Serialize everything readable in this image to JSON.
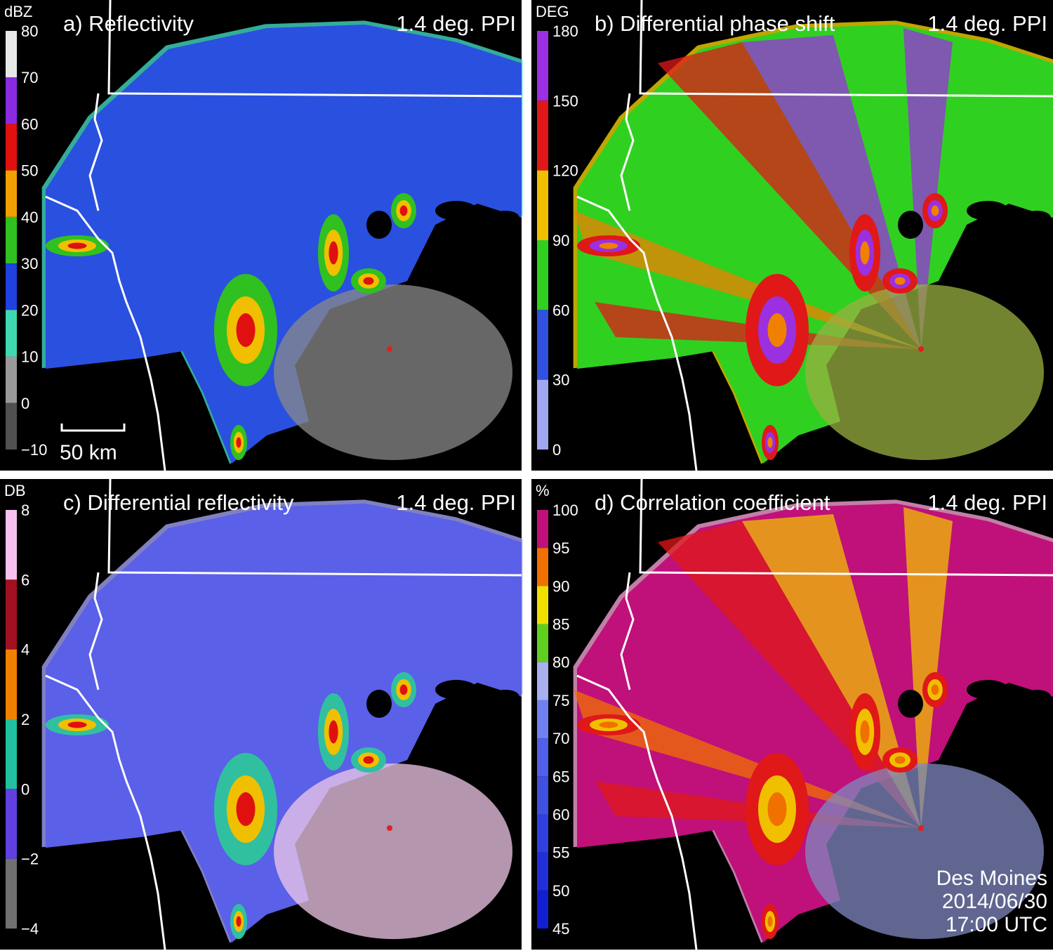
{
  "panels": [
    {
      "title": "a) Reflectivity",
      "scan": "1.4 deg. PPI",
      "unit": "dBZ",
      "ticks": [
        "80",
        "70",
        "60",
        "50",
        "40",
        "30",
        "20",
        "10",
        "0",
        "−10"
      ],
      "colors": [
        "#e8e8e8",
        "#8a2be2",
        "#e01010",
        "#f0a000",
        "#30c020",
        "#2040e0",
        "#40d8b0",
        "#9a9a9a",
        "#505050"
      ]
    },
    {
      "title": "b) Differential phase shift",
      "scan": "1.4 deg. PPI",
      "unit": "DEG",
      "ticks": [
        "180",
        "150",
        "120",
        "90",
        "60",
        "30",
        "0"
      ],
      "colors": [
        "#9a30e0",
        "#e01818",
        "#f0c000",
        "#30d020",
        "#3050e0",
        "#a0a8f0"
      ]
    },
    {
      "title": "c) Differential reflectivity",
      "scan": "1.4 deg. PPI",
      "unit": "DB",
      "ticks": [
        "8",
        "6",
        "4",
        "2",
        "0",
        "−2",
        "−4"
      ],
      "colors": [
        "#f8c0f0",
        "#a01020",
        "#f08000",
        "#20c0a0",
        "#6040e0",
        "#707070"
      ]
    },
    {
      "title": "d) Correlation coefficient",
      "scan": "1.4 deg. PPI",
      "unit": "%",
      "ticks": [
        "100",
        "95",
        "90",
        "85",
        "80",
        "75",
        "70",
        "65",
        "60",
        "55",
        "50",
        "45"
      ],
      "colors": [
        "#c0107a",
        "#f07000",
        "#f0e000",
        "#60d020",
        "#a8b0f0",
        "#7080f0",
        "#5060e8",
        "#4050e0",
        "#3040e0",
        "#2030d8",
        "#1020d0"
      ]
    }
  ],
  "scale_bar": "50 km",
  "station": {
    "name": "Des Moines",
    "date": "2014/06/30",
    "time": "17:00 UTC"
  }
}
